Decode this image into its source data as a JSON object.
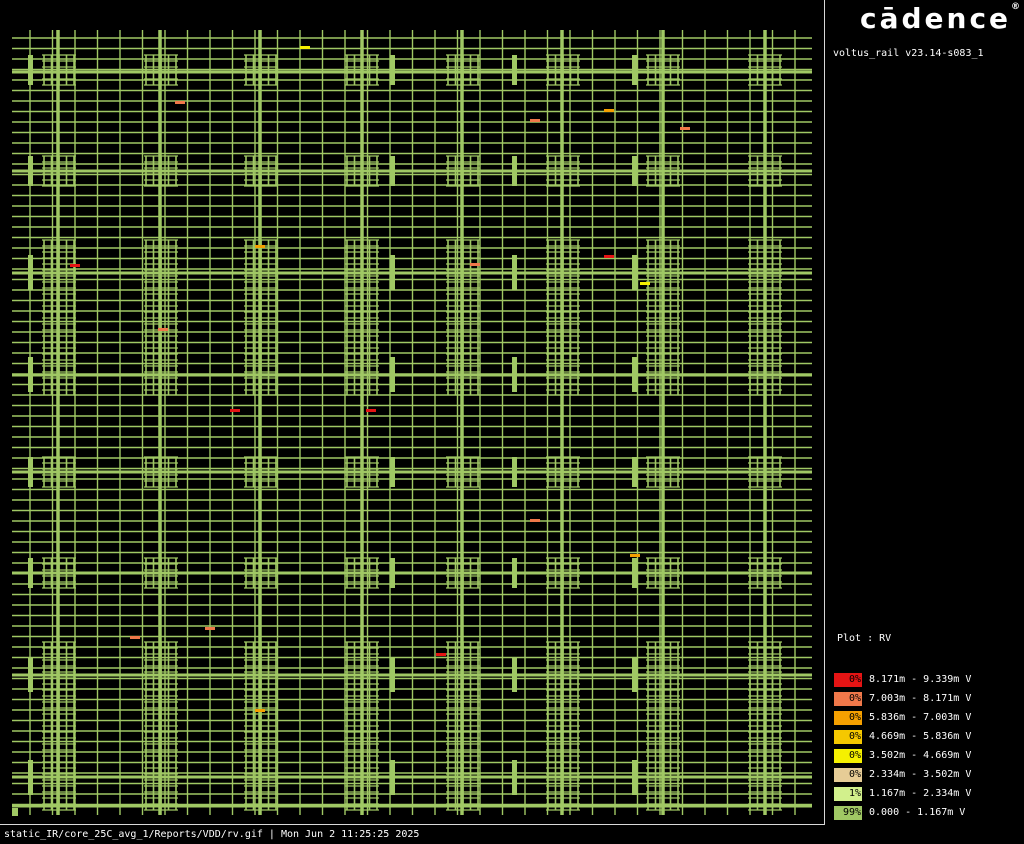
{
  "branding": {
    "logo_text": "cādence",
    "registered_mark": "®",
    "accent_color": "#e2001a"
  },
  "version": "voltus_rail v23.14-s083_1",
  "plot_label": "Plot : RV",
  "legend": [
    {
      "percent": "0%",
      "range": "8.171m - 9.339m V",
      "color": "#e51414"
    },
    {
      "percent": "0%",
      "range": "7.003m - 8.171m V",
      "color": "#f0784a"
    },
    {
      "percent": "0%",
      "range": "5.836m - 7.003m V",
      "color": "#f5a000"
    },
    {
      "percent": "0%",
      "range": "4.669m - 5.836m V",
      "color": "#f5c800"
    },
    {
      "percent": "0%",
      "range": "3.502m - 4.669m V",
      "color": "#f5f000"
    },
    {
      "percent": "0%",
      "range": "2.334m - 3.502m V",
      "color": "#e6cc96"
    },
    {
      "percent": "1%",
      "range": "1.167m - 2.334m V",
      "color": "#d2f08c"
    },
    {
      "percent": "99%",
      "range": "0.000 - 1.167m V",
      "color": "#a0c864"
    }
  ],
  "status_bar": "static_IR/core_25C_avg_1/Reports/VDD/rv.gif | Mon Jun  2 11:25:25 2025",
  "colors": {
    "grid": "#a0c864",
    "background": "#000000"
  }
}
